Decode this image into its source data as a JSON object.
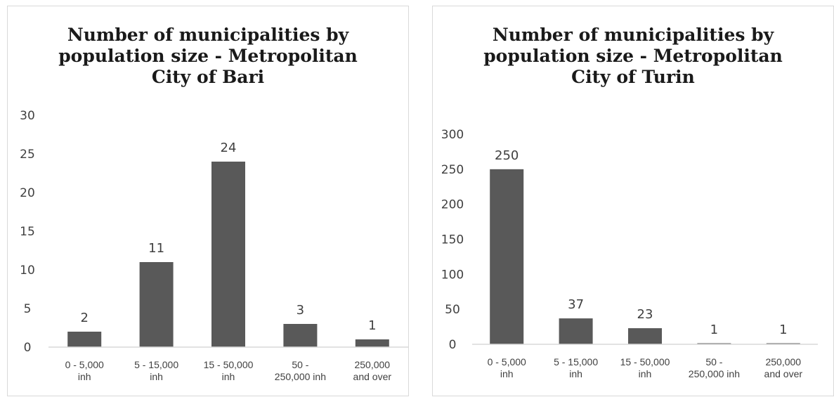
{
  "chart_data": [
    {
      "type": "bar",
      "title": "Number of municipalities by population size - Metropolitan City of Bari",
      "categories": [
        "0 - 5,000 inh",
        "5 - 15,000 inh",
        "15 - 50,000 inh",
        "50 - 250,000 inh",
        "250,000 and over"
      ],
      "category_lines": [
        [
          "0 - 5,000",
          "inh"
        ],
        [
          "5 - 15,000",
          "inh"
        ],
        [
          "15 - 50,000",
          "inh"
        ],
        [
          "50 -",
          "250,000 inh"
        ],
        [
          "250,000",
          "and over"
        ]
      ],
      "values": [
        2,
        11,
        24,
        3,
        1
      ],
      "yticks": [
        0,
        5,
        10,
        15,
        20,
        25,
        30
      ],
      "ylim": [
        0,
        30
      ],
      "grid": false,
      "legend": "none",
      "bar_color": "#595959"
    },
    {
      "type": "bar",
      "title": "Number of municipalities by population size - Metropolitan City of Turin",
      "categories": [
        "0 - 5,000 inh",
        "5 - 15,000 inh",
        "15 - 50,000 inh",
        "50 - 250,000 inh",
        "250,000 and over"
      ],
      "category_lines": [
        [
          "0 - 5,000",
          "inh"
        ],
        [
          "5 - 15,000",
          "inh"
        ],
        [
          "15 - 50,000",
          "inh"
        ],
        [
          "50 -",
          "250,000 inh"
        ],
        [
          "250,000",
          "and over"
        ]
      ],
      "values": [
        250,
        37,
        23,
        1,
        1
      ],
      "yticks": [
        0,
        50,
        100,
        150,
        200,
        250,
        300
      ],
      "ylim": [
        0,
        300
      ],
      "grid": false,
      "legend": "none",
      "bar_color": "#595959"
    }
  ]
}
